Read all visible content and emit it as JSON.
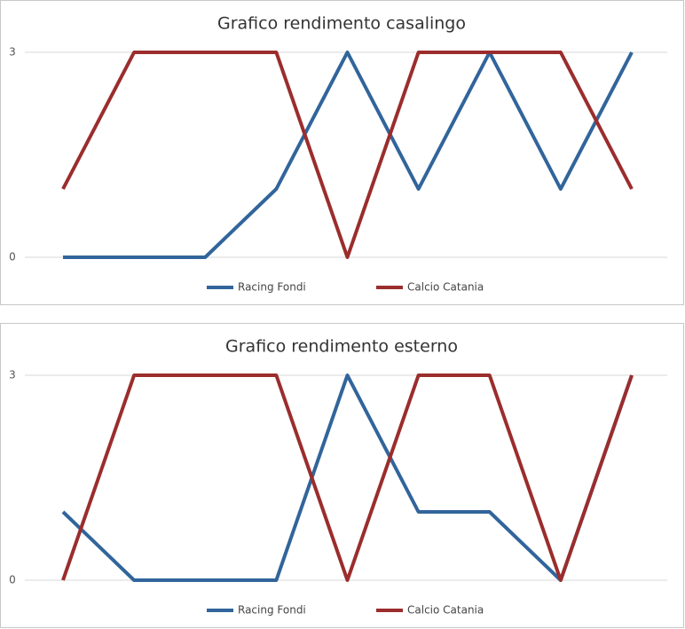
{
  "chart_data": [
    {
      "type": "line",
      "title": "Grafico rendimento casalingo",
      "categories": [
        null,
        null,
        null,
        null,
        null,
        null,
        null,
        null,
        null
      ],
      "series": [
        {
          "name": "Racing Fondi",
          "color": "#31659b",
          "values": [
            0,
            0,
            0,
            1,
            3,
            1,
            3,
            1,
            3
          ]
        },
        {
          "name": "Calcio Catania",
          "color": "#9b2d2d",
          "values": [
            1,
            3,
            3,
            3,
            0,
            3,
            3,
            3,
            1
          ]
        }
      ],
      "ylim": [
        0,
        3
      ],
      "yticks": [
        0,
        3
      ],
      "grid": true,
      "legend": "bottom"
    },
    {
      "type": "line",
      "title": "Grafico rendimento esterno",
      "categories": [
        null,
        null,
        null,
        null,
        null,
        null,
        null,
        null,
        null
      ],
      "series": [
        {
          "name": "Racing Fondi",
          "color": "#31659b",
          "values": [
            1,
            0,
            0,
            0,
            3,
            1,
            1,
            0,
            3
          ]
        },
        {
          "name": "Calcio Catania",
          "color": "#9b2d2d",
          "values": [
            0,
            3,
            3,
            3,
            0,
            3,
            3,
            0,
            3
          ]
        }
      ],
      "ylim": [
        0,
        3
      ],
      "yticks": [
        0,
        3
      ],
      "grid": true,
      "legend": "bottom"
    }
  ]
}
